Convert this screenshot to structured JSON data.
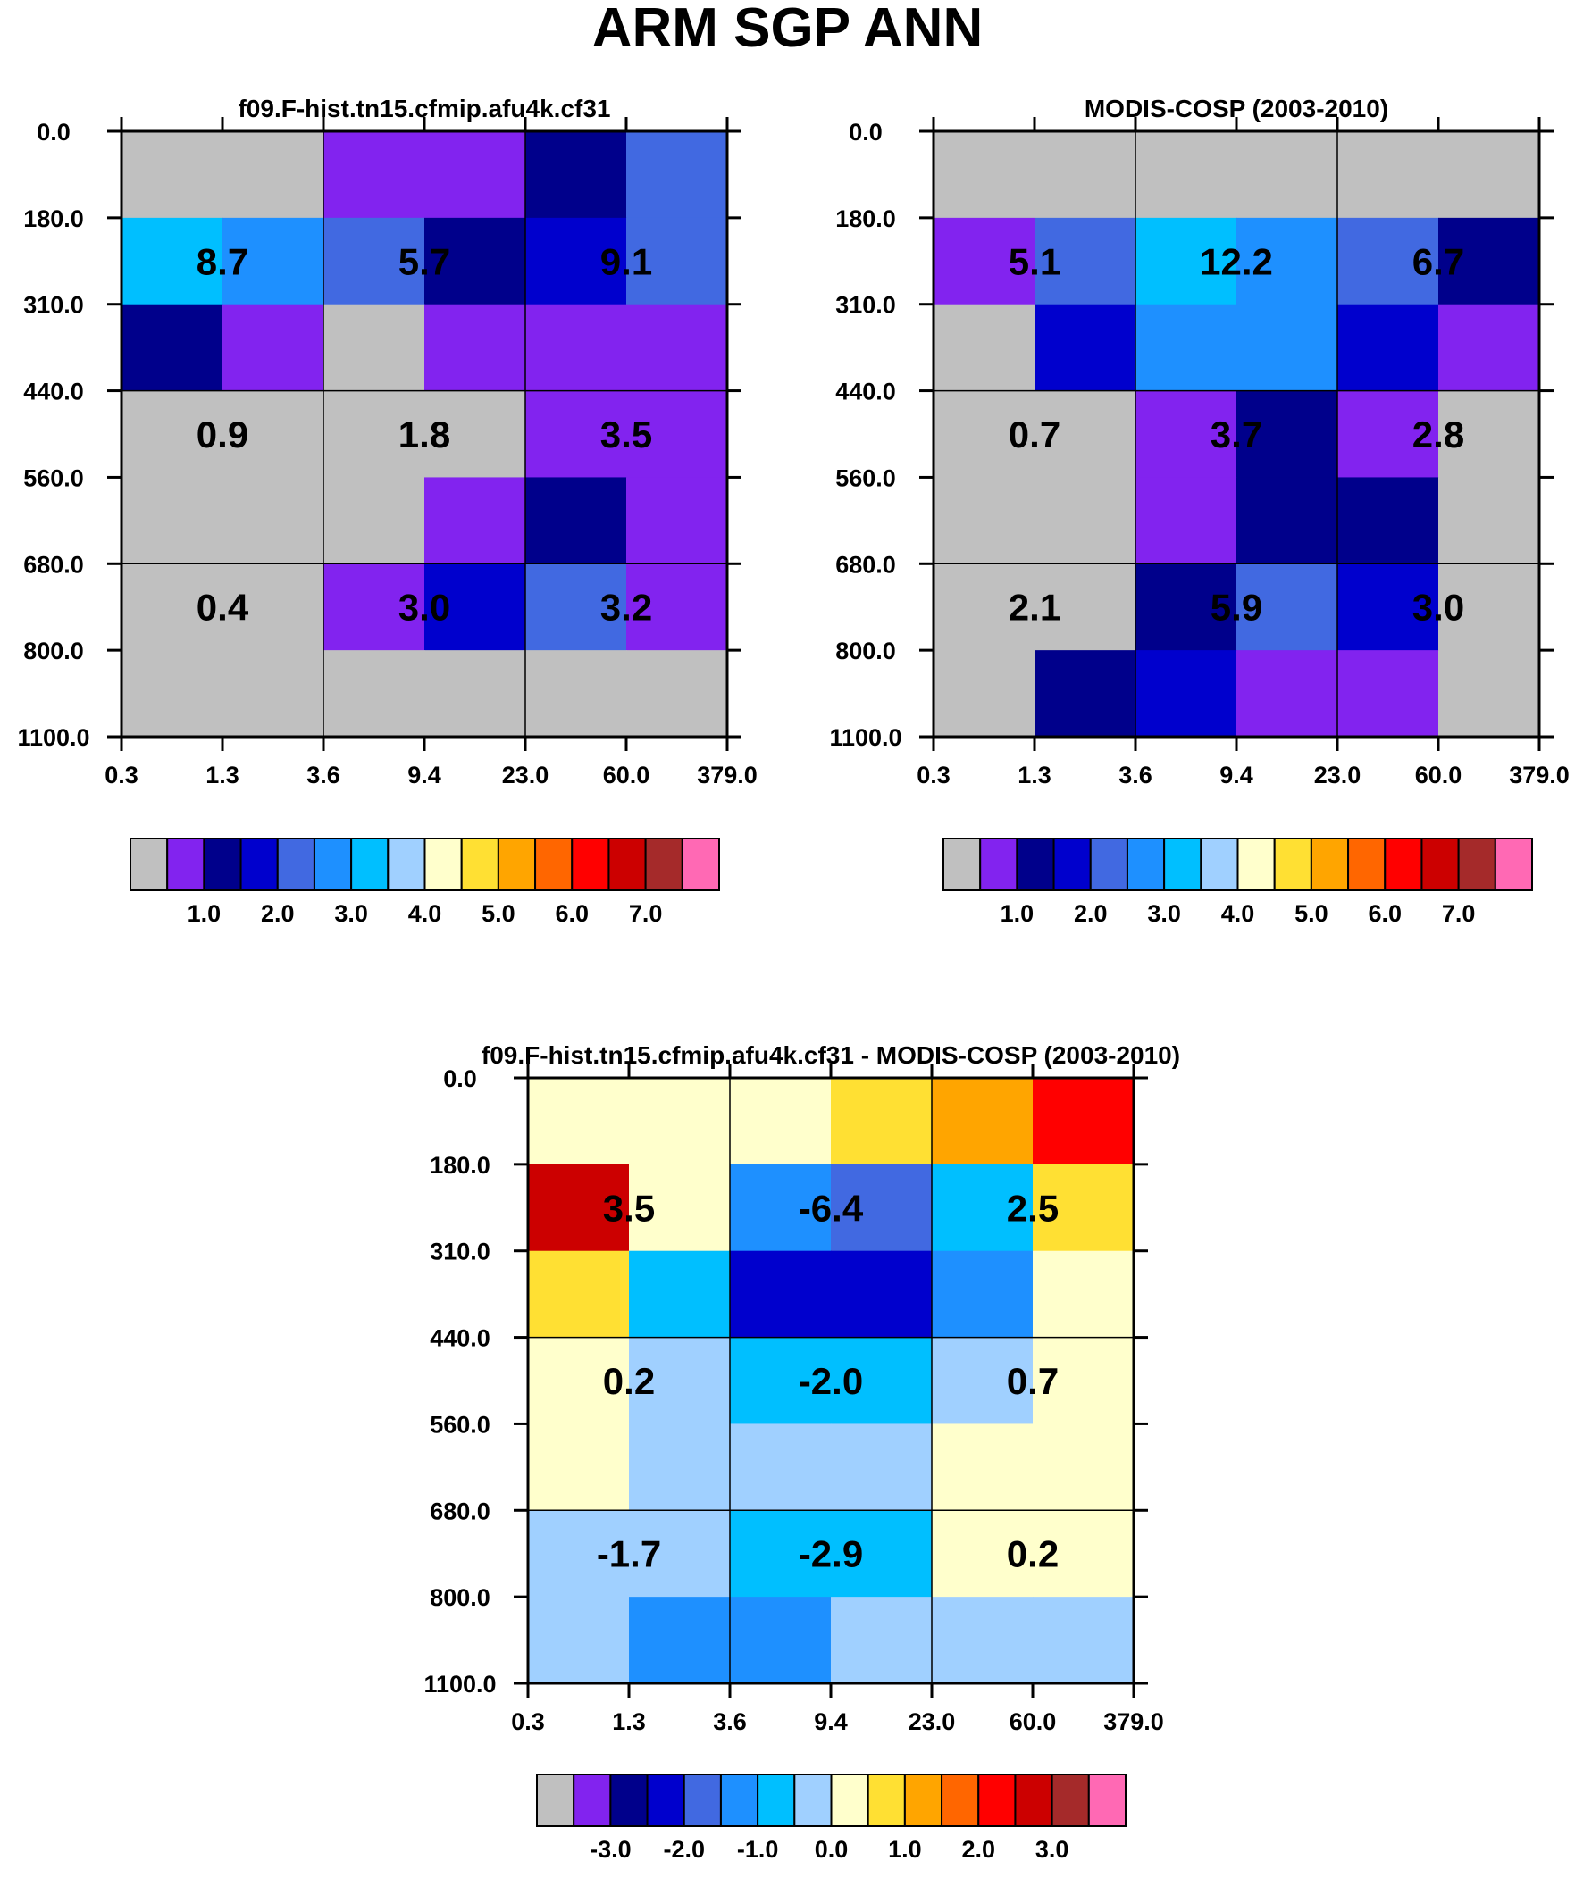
{
  "title": "ARM SGP ANN",
  "colors": {
    "gray": "#c0c0c0",
    "purple": "#8223ef",
    "navy": "#00008b",
    "blue": "#0000cd",
    "royal": "#4169e1",
    "dodger": "#1e90ff",
    "deepsky": "#00bfff",
    "lightblue": "#a0d0ff",
    "cream": "#ffffcc",
    "yellow": "#ffe033",
    "orange": "#ffa500",
    "darkorange": "#ff6600",
    "red": "#ff0000",
    "crimson": "#cc0000",
    "brown": "#a52a2a",
    "pink": "#ff69b4"
  },
  "chart_data": [
    {
      "type": "heatmap",
      "title": "f09.F-hist.tn15.cfmip.afu4k.cf31",
      "xticks": [
        "0.3",
        "1.3",
        "3.6",
        "9.4",
        "23.0",
        "60.0",
        "379.0"
      ],
      "yticks": [
        "0.0",
        "180.0",
        "310.0",
        "440.0",
        "560.0",
        "680.0",
        "800.0",
        "1100.0"
      ],
      "cells": [
        [
          "gray",
          "gray",
          "purple",
          "purple",
          "navy",
          "royal"
        ],
        [
          "deepsky",
          "dodger",
          "royal",
          "navy",
          "blue",
          "royal"
        ],
        [
          "navy",
          "purple",
          "gray",
          "purple",
          "purple",
          "purple"
        ],
        [
          "gray",
          "gray",
          "gray",
          "gray",
          "purple",
          "purple"
        ],
        [
          "gray",
          "gray",
          "gray",
          "purple",
          "navy",
          "purple"
        ],
        [
          "gray",
          "gray",
          "purple",
          "blue",
          "royal",
          "purple"
        ],
        [
          "gray",
          "gray",
          "gray",
          "gray",
          "gray",
          "gray"
        ]
      ],
      "labels": [
        [
          "8.7",
          "5.7",
          "9.1"
        ],
        [
          "0.9",
          "1.8",
          "3.5"
        ],
        [
          "0.4",
          "3.0",
          "3.2"
        ]
      ],
      "colorbar": {
        "colors": [
          "gray",
          "purple",
          "navy",
          "blue",
          "royal",
          "dodger",
          "deepsky",
          "lightblue",
          "cream",
          "yellow",
          "orange",
          "darkorange",
          "red",
          "crimson",
          "brown",
          "pink"
        ],
        "labels": [
          "1.0",
          "2.0",
          "3.0",
          "4.0",
          "5.0",
          "6.0",
          "7.0"
        ]
      }
    },
    {
      "type": "heatmap",
      "title": "MODIS-COSP (2003-2010)",
      "xticks": [
        "0.3",
        "1.3",
        "3.6",
        "9.4",
        "23.0",
        "60.0",
        "379.0"
      ],
      "yticks": [
        "0.0",
        "180.0",
        "310.0",
        "440.0",
        "560.0",
        "680.0",
        "800.0",
        "1100.0"
      ],
      "cells": [
        [
          "gray",
          "gray",
          "gray",
          "gray",
          "gray",
          "gray"
        ],
        [
          "purple",
          "royal",
          "deepsky",
          "dodger",
          "royal",
          "navy"
        ],
        [
          "gray",
          "blue",
          "dodger",
          "dodger",
          "blue",
          "purple"
        ],
        [
          "gray",
          "gray",
          "purple",
          "navy",
          "purple",
          "gray"
        ],
        [
          "gray",
          "gray",
          "purple",
          "navy",
          "navy",
          "gray"
        ],
        [
          "gray",
          "gray",
          "navy",
          "royal",
          "blue",
          "gray"
        ],
        [
          "gray",
          "navy",
          "blue",
          "purple",
          "purple",
          "gray"
        ]
      ],
      "labels": [
        [
          "5.1",
          "12.2",
          "6.7"
        ],
        [
          "0.7",
          "3.7",
          "2.8"
        ],
        [
          "2.1",
          "5.9",
          "3.0"
        ]
      ],
      "colorbar": {
        "colors": [
          "gray",
          "purple",
          "navy",
          "blue",
          "royal",
          "dodger",
          "deepsky",
          "lightblue",
          "cream",
          "yellow",
          "orange",
          "darkorange",
          "red",
          "crimson",
          "brown",
          "pink"
        ],
        "labels": [
          "1.0",
          "2.0",
          "3.0",
          "4.0",
          "5.0",
          "6.0",
          "7.0"
        ]
      }
    },
    {
      "type": "heatmap",
      "title": "f09.F-hist.tn15.cfmip.afu4k.cf31 - MODIS-COSP (2003-2010)",
      "xticks": [
        "0.3",
        "1.3",
        "3.6",
        "9.4",
        "23.0",
        "60.0",
        "379.0"
      ],
      "yticks": [
        "0.0",
        "180.0",
        "310.0",
        "440.0",
        "560.0",
        "680.0",
        "800.0",
        "1100.0"
      ],
      "cells": [
        [
          "cream",
          "cream",
          "cream",
          "yellow",
          "orange",
          "red"
        ],
        [
          "crimson",
          "cream",
          "dodger",
          "royal",
          "deepsky",
          "yellow"
        ],
        [
          "yellow",
          "deepsky",
          "blue",
          "blue",
          "dodger",
          "cream"
        ],
        [
          "cream",
          "lightblue",
          "deepsky",
          "deepsky",
          "lightblue",
          "cream"
        ],
        [
          "cream",
          "lightblue",
          "lightblue",
          "lightblue",
          "cream",
          "cream"
        ],
        [
          "lightblue",
          "lightblue",
          "deepsky",
          "deepsky",
          "cream",
          "cream"
        ],
        [
          "lightblue",
          "dodger",
          "dodger",
          "lightblue",
          "lightblue",
          "lightblue"
        ]
      ],
      "labels": [
        [
          "3.5",
          "-6.4",
          "2.5"
        ],
        [
          "0.2",
          "-2.0",
          "0.7"
        ],
        [
          "-1.7",
          "-2.9",
          "0.2"
        ]
      ],
      "colorbar": {
        "colors": [
          "gray",
          "purple",
          "navy",
          "blue",
          "royal",
          "dodger",
          "deepsky",
          "lightblue",
          "cream",
          "yellow",
          "orange",
          "darkorange",
          "red",
          "crimson",
          "brown",
          "pink"
        ],
        "labels": [
          "-3.0",
          "-2.0",
          "-1.0",
          "0.0",
          "1.0",
          "2.0",
          "3.0"
        ]
      }
    }
  ]
}
